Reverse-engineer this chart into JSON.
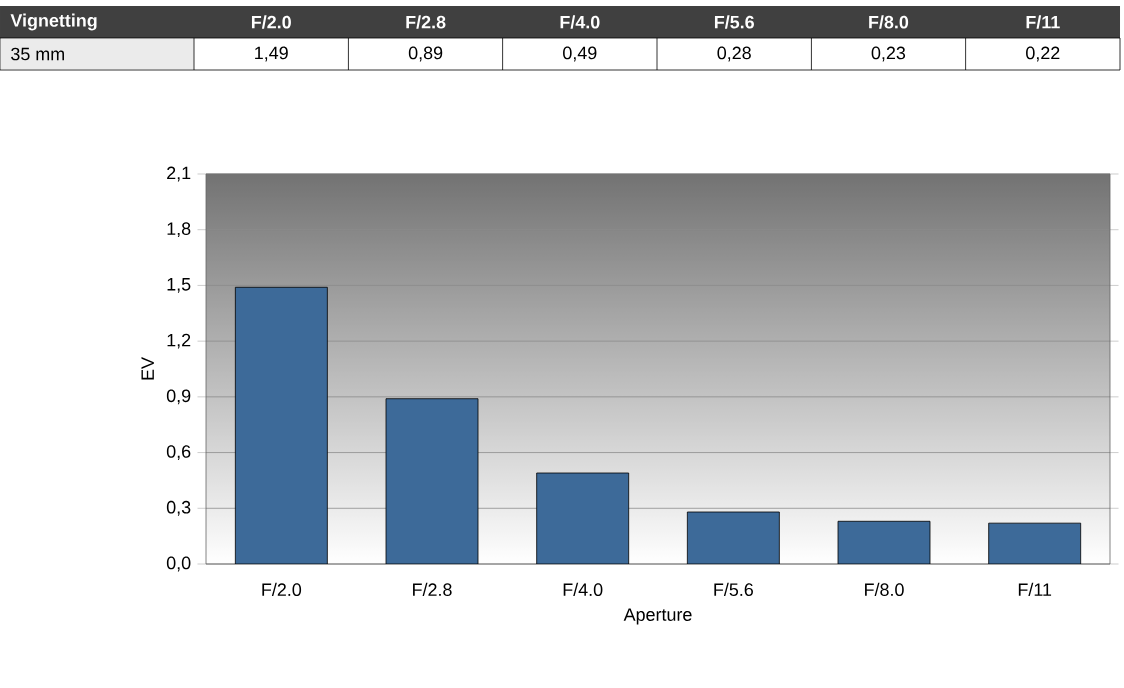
{
  "chart_data": {
    "type": "bar",
    "title": "Vignetting",
    "xlabel": "Aperture",
    "ylabel": "EV",
    "categories": [
      "F/2.0",
      "F/2.8",
      "F/4.0",
      "F/5.6",
      "F/8.0",
      "F/11"
    ],
    "series": [
      {
        "name": "35 mm",
        "color": "#3d6a99",
        "values": [
          1.49,
          0.89,
          0.49,
          0.28,
          0.23,
          0.22
        ],
        "value_labels": [
          "1,49",
          "0,89",
          "0,49",
          "0,28",
          "0,23",
          "0,22"
        ]
      }
    ],
    "ylim": [
      0,
      2.1
    ],
    "yticks": [
      {
        "value": 0,
        "label": "0,0"
      },
      {
        "value": 0.3,
        "label": "0,3"
      },
      {
        "value": 0.6,
        "label": "0,6"
      },
      {
        "value": 0.9,
        "label": "0,9"
      },
      {
        "value": 1.2,
        "label": "1,2"
      },
      {
        "value": 1.5,
        "label": "1,5"
      },
      {
        "value": 1.8,
        "label": "1,8"
      },
      {
        "value": 2.1,
        "label": "2,1"
      }
    ],
    "grid": "y",
    "legend": false
  }
}
